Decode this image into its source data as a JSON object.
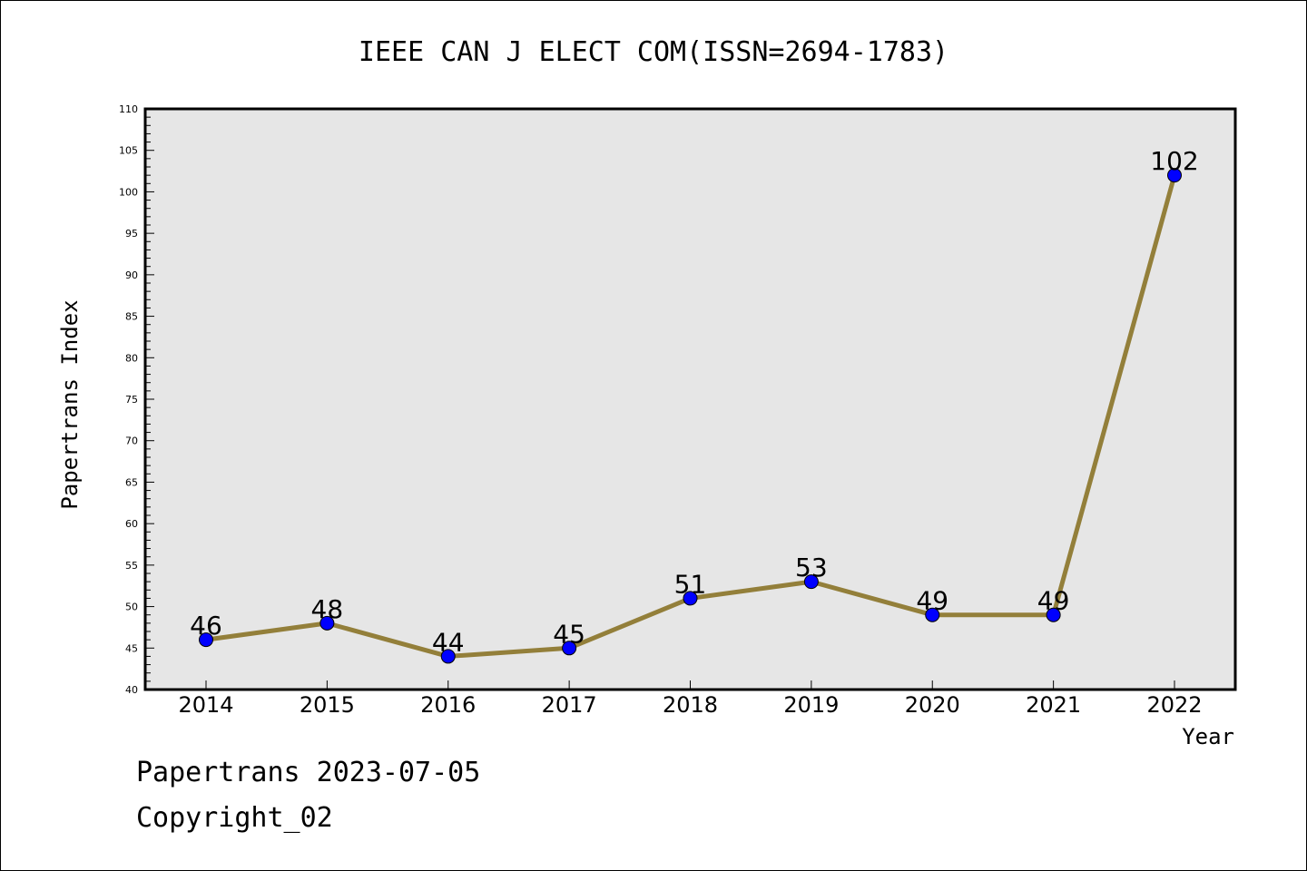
{
  "chart_data": {
    "type": "line",
    "title": "IEEE CAN J ELECT COM(ISSN=2694-1783)",
    "xlabel": "Year",
    "ylabel": "Papertrans Index",
    "categories": [
      "2014",
      "2015",
      "2016",
      "2017",
      "2018",
      "2019",
      "2020",
      "2021",
      "2022"
    ],
    "series": [
      {
        "values": [
          46,
          48,
          44,
          45,
          51,
          53,
          49,
          49,
          102
        ]
      }
    ],
    "data_labels": [
      "46",
      "48",
      "44",
      "45",
      "51",
      "53",
      "49",
      "49",
      "102"
    ],
    "ylim": [
      40,
      110
    ],
    "yticks": [
      "40",
      "45",
      "50",
      "55",
      "60",
      "65",
      "70",
      "75",
      "80",
      "85",
      "90",
      "95",
      "100",
      "105",
      "110"
    ],
    "grid": false,
    "legend": "none",
    "colors": {
      "line": "#937F3A",
      "marker": "#0000FF",
      "plot_background": "#E6E6E6"
    }
  },
  "footer": {
    "line1": "Papertrans 2023-07-05",
    "line2": "Copyright_02"
  }
}
